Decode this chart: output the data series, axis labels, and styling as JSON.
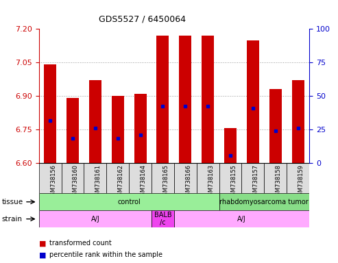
{
  "title": "GDS5527 / 6450064",
  "samples": [
    "GSM738156",
    "GSM738160",
    "GSM738161",
    "GSM738162",
    "GSM738164",
    "GSM738165",
    "GSM738166",
    "GSM738163",
    "GSM738155",
    "GSM738157",
    "GSM738158",
    "GSM738159"
  ],
  "bar_tops": [
    7.04,
    6.89,
    6.97,
    6.9,
    6.91,
    7.17,
    7.17,
    7.17,
    6.755,
    7.15,
    6.93,
    6.97
  ],
  "bar_base": 6.6,
  "percentile_values": [
    6.79,
    6.71,
    6.755,
    6.71,
    6.725,
    6.855,
    6.855,
    6.855,
    6.635,
    6.845,
    6.745,
    6.755
  ],
  "ylim_left": [
    6.6,
    7.2
  ],
  "ylim_right": [
    0,
    100
  ],
  "yticks_left": [
    6.6,
    6.75,
    6.9,
    7.05,
    7.2
  ],
  "yticks_right": [
    0,
    25,
    50,
    75,
    100
  ],
  "grid_lines": [
    6.75,
    6.9,
    7.05
  ],
  "bar_color": "#cc0000",
  "percentile_color": "#0000cc",
  "tissue_groups": [
    {
      "label": "control",
      "start": 0,
      "end": 8,
      "color": "#99ee99"
    },
    {
      "label": "rhabdomyosarcoma tumor",
      "start": 8,
      "end": 12,
      "color": "#88dd88"
    }
  ],
  "strain_groups": [
    {
      "label": "A/J",
      "start": 0,
      "end": 5,
      "color": "#ffaaff"
    },
    {
      "label": "BALB\n/c",
      "start": 5,
      "end": 6,
      "color": "#ee44ee"
    },
    {
      "label": "A/J",
      "start": 6,
      "end": 12,
      "color": "#ffaaff"
    }
  ],
  "sample_box_color": "#dddddd",
  "bg_color": "#ffffff",
  "grid_color": "#999999",
  "left_ycolor": "#cc0000",
  "right_ycolor": "#0000cc"
}
